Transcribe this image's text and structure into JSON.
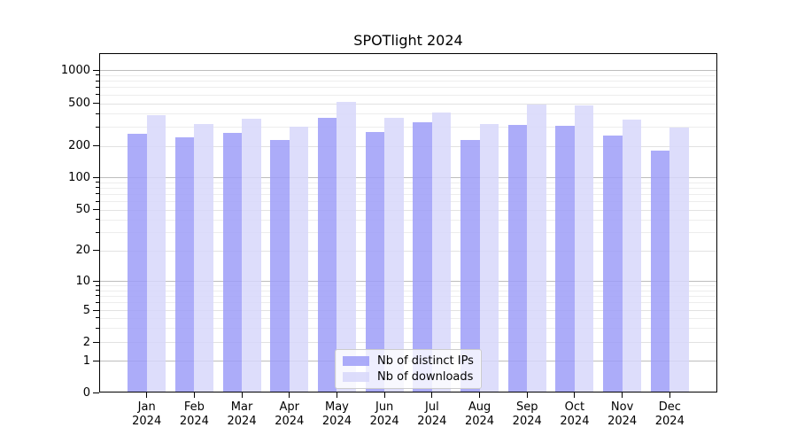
{
  "chart_data": {
    "type": "bar",
    "title": "SPOTlight 2024",
    "categories": [
      "Jan",
      "Feb",
      "Mar",
      "Apr",
      "May",
      "Jun",
      "Jul",
      "Aug",
      "Sep",
      "Oct",
      "Nov",
      "Dec"
    ],
    "category_year": "2024",
    "series": [
      {
        "name": "Nb of distinct IPs",
        "color": "#9d9df8",
        "values": [
          258,
          242,
          265,
          228,
          368,
          270,
          330,
          226,
          315,
          306,
          248,
          180
        ]
      },
      {
        "name": "Nb of downloads",
        "color": "#d7d7fa",
        "values": [
          385,
          320,
          360,
          303,
          510,
          365,
          410,
          318,
          490,
          480,
          352,
          297
        ]
      }
    ],
    "xlabel": "",
    "ylabel": "",
    "yscale": "symlog",
    "ylim": [
      0,
      1400
    ],
    "yticks": [
      0,
      1,
      2,
      5,
      10,
      20,
      50,
      100,
      200,
      500,
      1000
    ],
    "grid": "both",
    "legend_position": "lower center"
  }
}
